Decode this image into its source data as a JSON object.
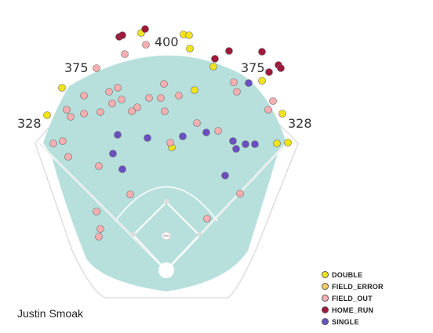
{
  "chart_data": {
    "type": "scatter",
    "title": "",
    "player": "Justin Smoak",
    "wall_distances": [
      "328",
      "375",
      "400",
      "375",
      "328"
    ],
    "legend": [
      {
        "name": "DOUBLE",
        "color": "#f2e21a"
      },
      {
        "name": "FIELD_ERROR",
        "color": "#f7cf60"
      },
      {
        "name": "FIELD_OUT",
        "color": "#f7aeb0"
      },
      {
        "name": "HOME_RUN",
        "color": "#a0173c"
      },
      {
        "name": "SINGLE",
        "color": "#6a4fc2"
      }
    ],
    "series": [
      {
        "name": "DOUBLE",
        "points": [
          [
            79,
            112
          ],
          [
            60,
            147
          ],
          [
            180,
            42
          ],
          [
            234,
            44
          ],
          [
            241,
            45
          ],
          [
            242,
            62
          ],
          [
            272,
            85
          ],
          [
            248,
            115
          ],
          [
            334,
            103
          ],
          [
            360,
            145
          ],
          [
            353,
            183
          ],
          [
            367,
            182
          ],
          [
            219,
            188
          ]
        ]
      },
      {
        "name": "FIELD_ERROR",
        "points": []
      },
      {
        "name": "FIELD_OUT",
        "points": [
          [
            159,
            69
          ],
          [
            186,
            57
          ],
          [
            123,
            87
          ],
          [
            209,
            107
          ],
          [
            228,
            122
          ],
          [
            298,
            105
          ],
          [
            302,
            117
          ],
          [
            139,
            117
          ],
          [
            150,
            112
          ],
          [
            155,
            127
          ],
          [
            143,
            132
          ],
          [
            107,
            122
          ],
          [
            128,
            143
          ],
          [
            175,
            137
          ],
          [
            168,
            142
          ],
          [
            190,
            125
          ],
          [
            205,
            125
          ],
          [
            210,
            142
          ],
          [
            251,
            157
          ],
          [
            278,
            167
          ],
          [
            348,
            129
          ],
          [
            342,
            140
          ],
          [
            85,
            140
          ],
          [
            90,
            149
          ],
          [
            107,
            145
          ],
          [
            68,
            183
          ],
          [
            80,
            180
          ],
          [
            87,
            200
          ],
          [
            126,
            212
          ],
          [
            166,
            248
          ],
          [
            123,
            270
          ],
          [
            128,
            292
          ],
          [
            126,
            302
          ],
          [
            217,
            182
          ],
          [
            264,
            279
          ],
          [
            306,
            247
          ]
        ]
      },
      {
        "name": "HOME_RUN",
        "points": [
          [
            152,
            47
          ],
          [
            156,
            45
          ],
          [
            185,
            37
          ],
          [
            274,
            75
          ],
          [
            292,
            65
          ],
          [
            334,
            66
          ],
          [
            355,
            83
          ],
          [
            358,
            87
          ],
          [
            343,
            92
          ]
        ]
      },
      {
        "name": "SINGLE",
        "points": [
          [
            150,
            172
          ],
          [
            188,
            176
          ],
          [
            233,
            174
          ],
          [
            263,
            169
          ],
          [
            317,
            106
          ],
          [
            297,
            180
          ],
          [
            301,
            190
          ],
          [
            313,
            184
          ],
          [
            325,
            184
          ],
          [
            144,
            196
          ],
          [
            156,
            216
          ],
          [
            287,
            224
          ]
        ]
      }
    ]
  }
}
